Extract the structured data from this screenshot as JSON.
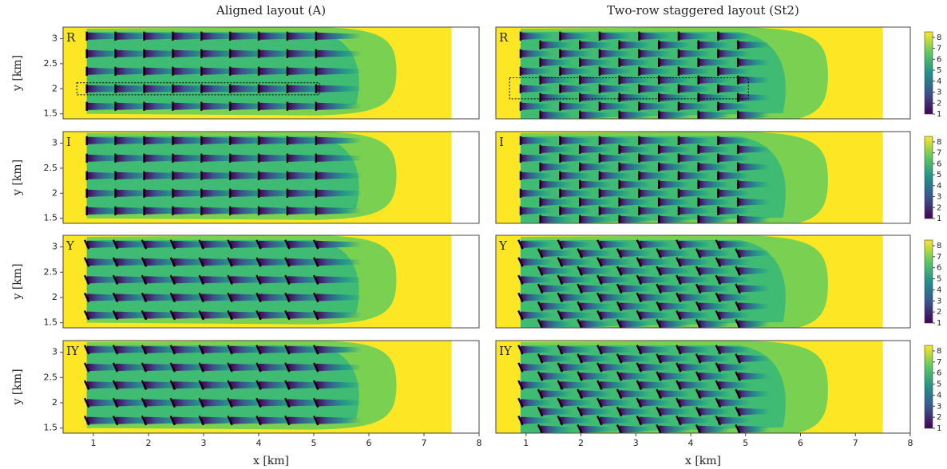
{
  "chart_data": [
    {
      "type": "field",
      "title": "Aligned layout (A)",
      "panel_label": "R",
      "xlim": [
        0.45,
        8
      ],
      "ylim": [
        1.4,
        3.23
      ],
      "yticks": [
        1.5,
        2.0,
        2.5,
        3.0
      ],
      "ylabel": "y [km]",
      "domain_xmax": 7.5,
      "wake_end": 6.5,
      "yaw": 0,
      "turbines": {
        "columns": [
          0.88,
          1.4,
          1.92,
          2.44,
          2.96,
          3.48,
          4.0,
          4.52,
          5.04
        ],
        "rows": [
          3.05,
          2.7,
          2.35,
          2.0,
          1.65
        ],
        "stagger": 0
      },
      "highlight": {
        "x": [
          0.7,
          5.1
        ],
        "y": [
          1.88,
          2.12
        ]
      }
    },
    {
      "type": "field",
      "title": "Two-row staggered layout (St2)",
      "panel_label": "R",
      "xlim": [
        0.45,
        8
      ],
      "ylim": [
        1.4,
        3.23
      ],
      "domain_xmax": 7.5,
      "wake_end": 6.5,
      "yaw": 0,
      "turbines": {
        "columns": [
          0.9,
          1.26,
          1.62,
          1.98,
          2.34,
          2.7,
          3.06,
          3.42,
          3.78,
          4.14,
          4.5,
          4.86
        ],
        "rows": [
          3.05,
          2.7,
          2.35,
          2.0,
          1.65
        ],
        "stagger": 0.175
      },
      "highlight": {
        "x": [
          0.7,
          5.05
        ],
        "y": [
          1.8,
          2.22
        ]
      },
      "colorbar": {
        "lim": [
          1,
          8.5
        ],
        "ticks": [
          1,
          2,
          3,
          4,
          5,
          6,
          7,
          8
        ]
      }
    },
    {
      "type": "field",
      "panel_label": "I",
      "xlim": [
        0.45,
        8
      ],
      "ylim": [
        1.4,
        3.23
      ],
      "yticks": [
        1.5,
        2.0,
        2.5,
        3.0
      ],
      "ylabel": "y [km]",
      "domain_xmax": 7.5,
      "wake_end": 6.5,
      "yaw": 0,
      "turbines": {
        "columns": [
          0.88,
          1.4,
          1.92,
          2.44,
          2.96,
          3.48,
          4.0,
          4.52,
          5.04
        ],
        "rows": [
          3.05,
          2.7,
          2.35,
          2.0,
          1.65
        ],
        "stagger": 0
      }
    },
    {
      "type": "field",
      "panel_label": "I",
      "xlim": [
        0.45,
        8
      ],
      "ylim": [
        1.4,
        3.23
      ],
      "domain_xmax": 7.5,
      "wake_end": 6.5,
      "yaw": 0,
      "turbines": {
        "columns": [
          0.9,
          1.26,
          1.62,
          1.98,
          2.34,
          2.7,
          3.06,
          3.42,
          3.78,
          4.14,
          4.5,
          4.86
        ],
        "rows": [
          3.05,
          2.7,
          2.35,
          2.0,
          1.65
        ],
        "stagger": 0.175
      },
      "colorbar": {
        "lim": [
          1,
          8.5
        ],
        "ticks": [
          1,
          2,
          3,
          4,
          5,
          6,
          7,
          8
        ]
      }
    },
    {
      "type": "field",
      "panel_label": "Y",
      "xlim": [
        0.45,
        8
      ],
      "ylim": [
        1.4,
        3.23
      ],
      "yticks": [
        1.5,
        2.0,
        2.5,
        3.0
      ],
      "ylabel": "y [km]",
      "domain_xmax": 7.5,
      "wake_end": 6.5,
      "yaw": 25,
      "turbines": {
        "columns": [
          0.88,
          1.4,
          1.92,
          2.44,
          2.96,
          3.48,
          4.0,
          4.52,
          5.04
        ],
        "rows": [
          3.05,
          2.7,
          2.35,
          2.0,
          1.65
        ],
        "stagger": 0
      }
    },
    {
      "type": "field",
      "panel_label": "Y",
      "xlim": [
        0.45,
        8
      ],
      "ylim": [
        1.4,
        3.23
      ],
      "domain_xmax": 7.5,
      "wake_end": 6.5,
      "yaw": 25,
      "turbines": {
        "columns": [
          0.9,
          1.26,
          1.62,
          1.98,
          2.34,
          2.7,
          3.06,
          3.42,
          3.78,
          4.14,
          4.5,
          4.86
        ],
        "rows": [
          3.05,
          2.7,
          2.35,
          2.0,
          1.65
        ],
        "stagger": 0.175
      },
      "colorbar": {
        "lim": [
          1,
          8.5
        ],
        "ticks": [
          1,
          2,
          3,
          4,
          5,
          6,
          7,
          8
        ]
      }
    },
    {
      "type": "field",
      "panel_label": "IY",
      "xlim": [
        0.45,
        8
      ],
      "ylim": [
        1.4,
        3.23
      ],
      "xticks": [
        1,
        2,
        3,
        4,
        5,
        6,
        7,
        8
      ],
      "xlabel": "x [km]",
      "yticks": [
        1.5,
        2.0,
        2.5,
        3.0
      ],
      "ylabel": "y [km]",
      "domain_xmax": 7.5,
      "wake_end": 6.5,
      "yaw": 25,
      "turbines": {
        "columns": [
          0.88,
          1.4,
          1.92,
          2.44,
          2.96,
          3.48,
          4.0,
          4.52,
          5.04
        ],
        "rows": [
          3.05,
          2.7,
          2.35,
          2.0,
          1.65
        ],
        "stagger": 0
      }
    },
    {
      "type": "field",
      "panel_label": "IY",
      "xlim": [
        0.45,
        8
      ],
      "ylim": [
        1.4,
        3.23
      ],
      "xticks": [
        1,
        2,
        3,
        4,
        5,
        6,
        7,
        8
      ],
      "xlabel": "x [km]",
      "domain_xmax": 7.5,
      "wake_end": 6.5,
      "yaw": 25,
      "turbines": {
        "columns": [
          0.9,
          1.26,
          1.62,
          1.98,
          2.34,
          2.7,
          3.06,
          3.42,
          3.78,
          4.14,
          4.5,
          4.86
        ],
        "rows": [
          3.05,
          2.7,
          2.35,
          2.0,
          1.65
        ],
        "stagger": 0.175
      },
      "colorbar": {
        "lim": [
          1,
          8.5
        ],
        "ticks": [
          1,
          2,
          3,
          4,
          5,
          6,
          7,
          8
        ]
      }
    }
  ]
}
